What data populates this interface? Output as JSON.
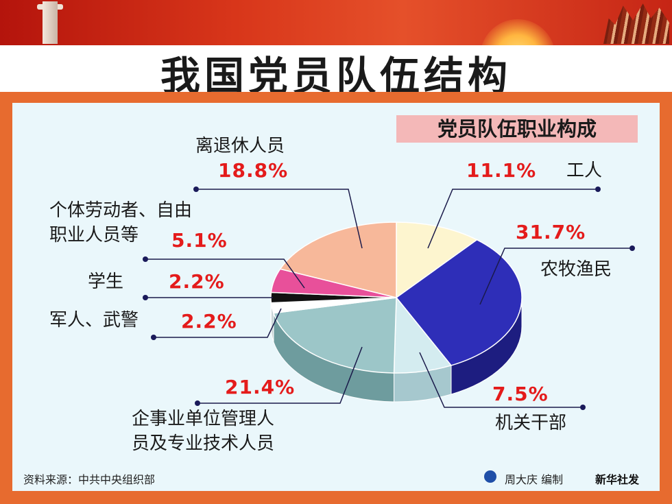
{
  "header": {
    "title": "我国党员队伍结构"
  },
  "chart_data": {
    "type": "pie",
    "title": "党员队伍职业构成",
    "slices": [
      {
        "label": "工人",
        "value": 11.1,
        "pct_label": "11.1%",
        "color": "#fdf5cf",
        "side": "#e2d8a6"
      },
      {
        "label": "农牧渔民",
        "value": 31.7,
        "pct_label": "31.7%",
        "color": "#2e2eb8",
        "side": "#1d1d80"
      },
      {
        "label": "机关干部",
        "value": 7.5,
        "pct_label": "7.5%",
        "color": "#d4ecf0",
        "side": "#a6c8ce"
      },
      {
        "label": "企事业单位管理人员及专业技术人员",
        "value": 21.4,
        "pct_label": "21.4%",
        "color": "#9cc6c8",
        "side": "#6e9c9e"
      },
      {
        "label": "军人、武警",
        "value": 2.2,
        "pct_label": "2.2%",
        "color": "#ffffff",
        "side": "#c8d4d6"
      },
      {
        "label": "学生",
        "value": 2.2,
        "pct_label": "2.2%",
        "color": "#111111",
        "side": "#000000"
      },
      {
        "label": "个体劳动者、自由职业人员等",
        "value": 5.1,
        "pct_label": "5.1%",
        "color": "#e8509a",
        "side": "#b53070"
      },
      {
        "label": "离退休人员",
        "value": 18.8,
        "pct_label": "18.8%",
        "color": "#f7b89a",
        "side": "#d58f70"
      }
    ]
  },
  "labels": {
    "worker": "工人",
    "farmer": "农牧渔民",
    "official": "机关干部",
    "enterprise_line1": "企事业单位管理人",
    "enterprise_line2": "员及专业技术人员",
    "military": "军人、武警",
    "student": "学生",
    "selfemp_line1": "个体劳动者、自由",
    "selfemp_line2": "职业人员等",
    "retired": "离退休人员"
  },
  "footer": {
    "source": "资料来源：中共中央组织部",
    "credit": "周大庆 编制",
    "org": "新华社发"
  }
}
